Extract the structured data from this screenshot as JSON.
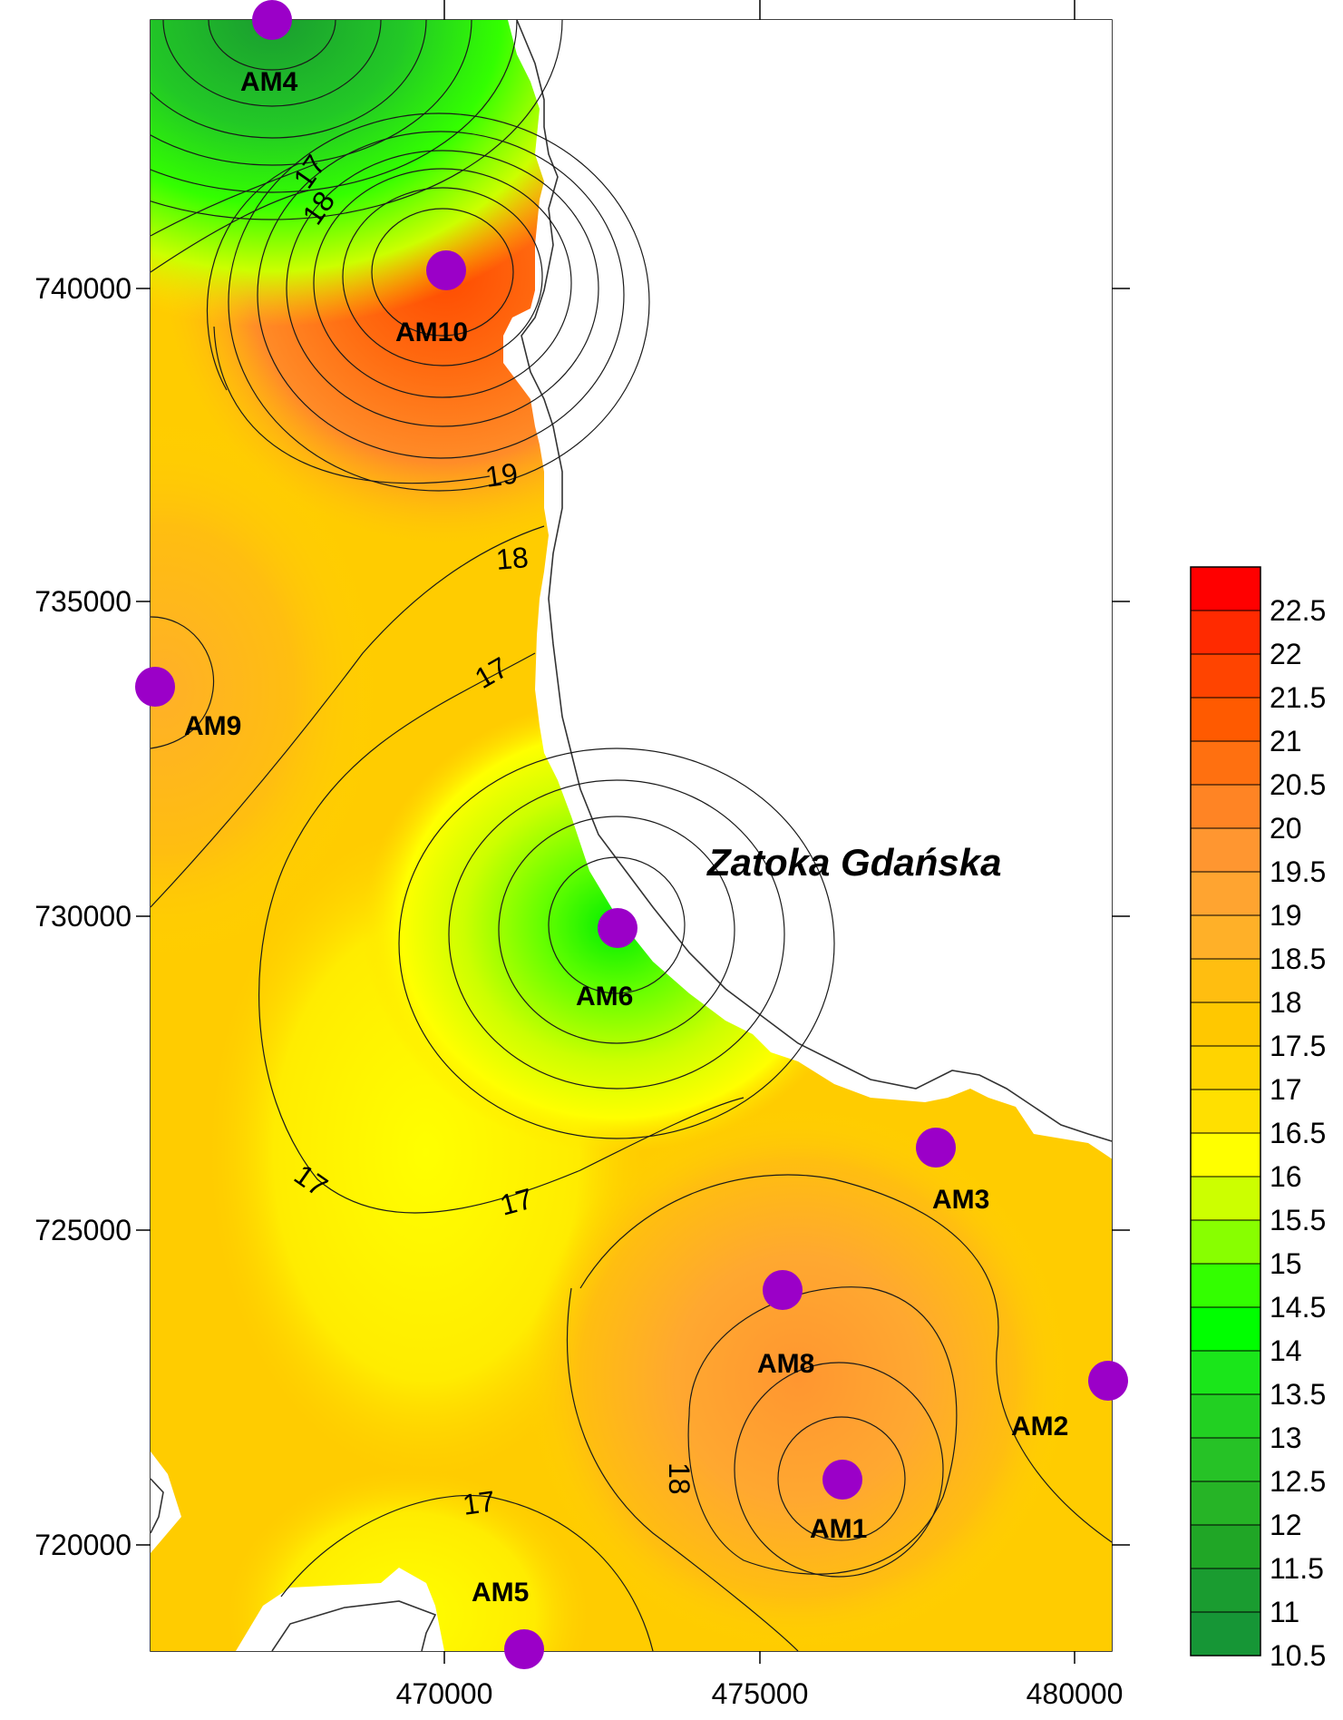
{
  "map": {
    "sea_label": "Zatoka Gdańska",
    "x_ticks": [
      "470000",
      "475000",
      "480000"
    ],
    "y_ticks": [
      "740000",
      "735000",
      "730000",
      "725000",
      "720000"
    ],
    "stations": [
      {
        "id": "AM4"
      },
      {
        "id": "AM10"
      },
      {
        "id": "AM9"
      },
      {
        "id": "AM6"
      },
      {
        "id": "AM3"
      },
      {
        "id": "AM8"
      },
      {
        "id": "AM2"
      },
      {
        "id": "AM1"
      },
      {
        "id": "AM5"
      }
    ],
    "contour_labels": [
      "17",
      "18",
      "19",
      "18",
      "17",
      "17",
      "17",
      "18",
      "17"
    ],
    "colorbar": {
      "labels": [
        "22.5",
        "22",
        "21.5",
        "21",
        "20.5",
        "20",
        "19.5",
        "19",
        "18.5",
        "18",
        "17.5",
        "17",
        "16.5",
        "16",
        "15.5",
        "15",
        "14.5",
        "14",
        "13.5",
        "13",
        "12.5",
        "12",
        "11.5",
        "11",
        "10.5"
      ],
      "colors": [
        "#ff0000",
        "#ff2a00",
        "#ff4400",
        "#ff5a00",
        "#ff7010",
        "#ff8424",
        "#ff9630",
        "#ffa430",
        "#ffb028",
        "#ffbe10",
        "#ffc800",
        "#ffd400",
        "#ffe000",
        "#ffff00",
        "#ccff00",
        "#88ff00",
        "#33ff00",
        "#00ff00",
        "#1ae61a",
        "#22d022",
        "#26c226",
        "#26b426",
        "#20a626",
        "#1a9c30",
        "#169636"
      ]
    }
  }
}
